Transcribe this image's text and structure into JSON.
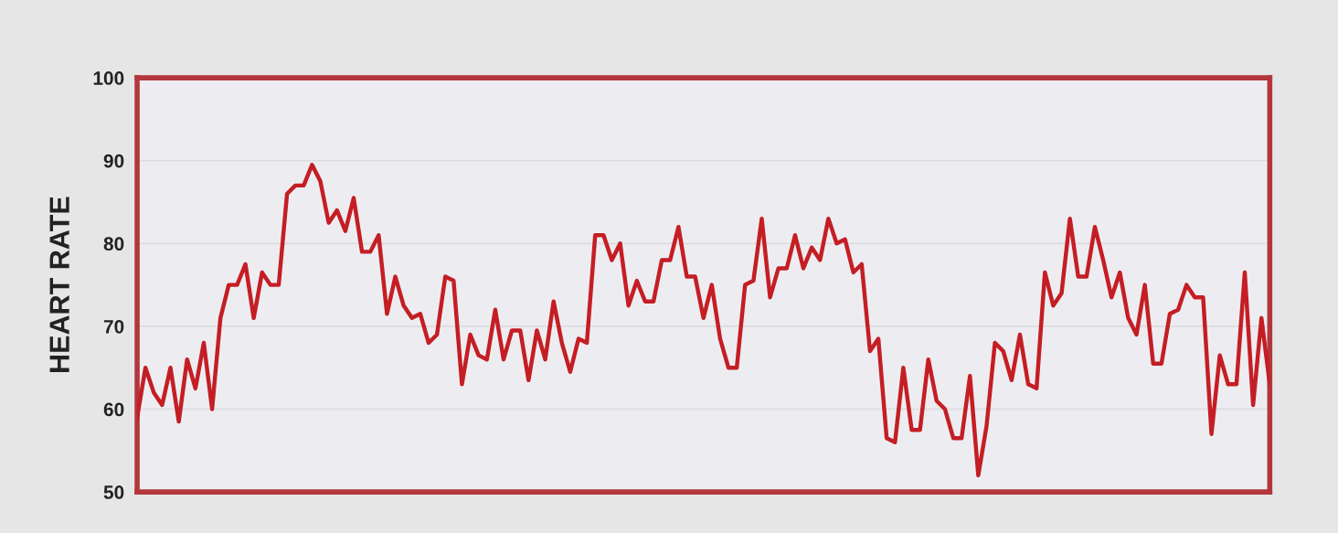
{
  "chart_data": {
    "type": "line",
    "ylabel": "HEART RATE",
    "ylim": [
      50,
      100
    ],
    "yticks": [
      50,
      60,
      70,
      80,
      90,
      100
    ],
    "categories": [
      null,
      null,
      null,
      null,
      null,
      null,
      null,
      null,
      null,
      null,
      null,
      null,
      null,
      null,
      null,
      null,
      null,
      null,
      null,
      null,
      null,
      null,
      null,
      null,
      null,
      null,
      null,
      null,
      null,
      null,
      null,
      null,
      null,
      null,
      null,
      null,
      null,
      null,
      null,
      null,
      null,
      null,
      null,
      null,
      null,
      null,
      null,
      null,
      null,
      null,
      null,
      null,
      null,
      null,
      null,
      null,
      null,
      null,
      null,
      null,
      null,
      null,
      null,
      null,
      null,
      null,
      null,
      null,
      null,
      null,
      null,
      null,
      null,
      null,
      null,
      null,
      null,
      null,
      null,
      null,
      null,
      null,
      null,
      null,
      null,
      null,
      null,
      null,
      null,
      null,
      null,
      null,
      null,
      null,
      null,
      null,
      null,
      null,
      null,
      null,
      null,
      null,
      null,
      null,
      null,
      null,
      null,
      null,
      null,
      null,
      null,
      null,
      null,
      null,
      null,
      null,
      null,
      null,
      null,
      null,
      null,
      null,
      null,
      null,
      null,
      null,
      null,
      null,
      null,
      null,
      null,
      null,
      null,
      null,
      null,
      null,
      null
    ],
    "tick_labels": "y",
    "grid": "y",
    "marker": "none",
    "line_style": "solid",
    "series": [
      {
        "color": "#c41e24",
        "values": [
          59,
          65,
          62,
          60.5,
          65,
          58.5,
          66,
          62.5,
          68,
          60,
          71,
          75,
          75,
          77.5,
          71,
          76.5,
          75,
          75,
          86,
          87,
          87,
          89.5,
          87.5,
          82.5,
          84,
          81.5,
          85.5,
          79,
          79,
          81,
          71.5,
          76,
          72.5,
          71,
          71.5,
          68,
          69,
          76,
          75.5,
          63,
          69,
          66.5,
          66,
          72,
          66,
          69.5,
          69.5,
          63.5,
          69.5,
          66,
          73,
          68,
          64.5,
          68.5,
          68,
          81,
          81,
          78,
          80,
          72.5,
          75.5,
          73,
          73,
          78,
          78,
          82,
          76,
          76,
          71,
          75,
          68.5,
          65,
          65,
          75,
          75.5,
          83,
          73.5,
          77,
          77,
          81,
          77,
          79.5,
          78,
          83,
          80,
          80.5,
          76.5,
          77.5,
          67,
          68.5,
          56.5,
          56,
          65,
          57.5,
          57.5,
          66,
          61,
          60,
          56.5,
          56.5,
          64,
          52,
          58,
          68,
          67,
          63.5,
          69,
          63,
          62.5,
          76.5,
          72.5,
          74,
          83,
          76,
          76,
          82,
          78,
          73.5,
          76.5,
          71,
          69,
          75,
          65.5,
          65.5,
          71.5,
          72,
          75,
          73.5,
          73.5,
          57,
          66.5,
          63,
          63,
          76.5,
          60.5,
          71,
          63
        ]
      }
    ]
  }
}
